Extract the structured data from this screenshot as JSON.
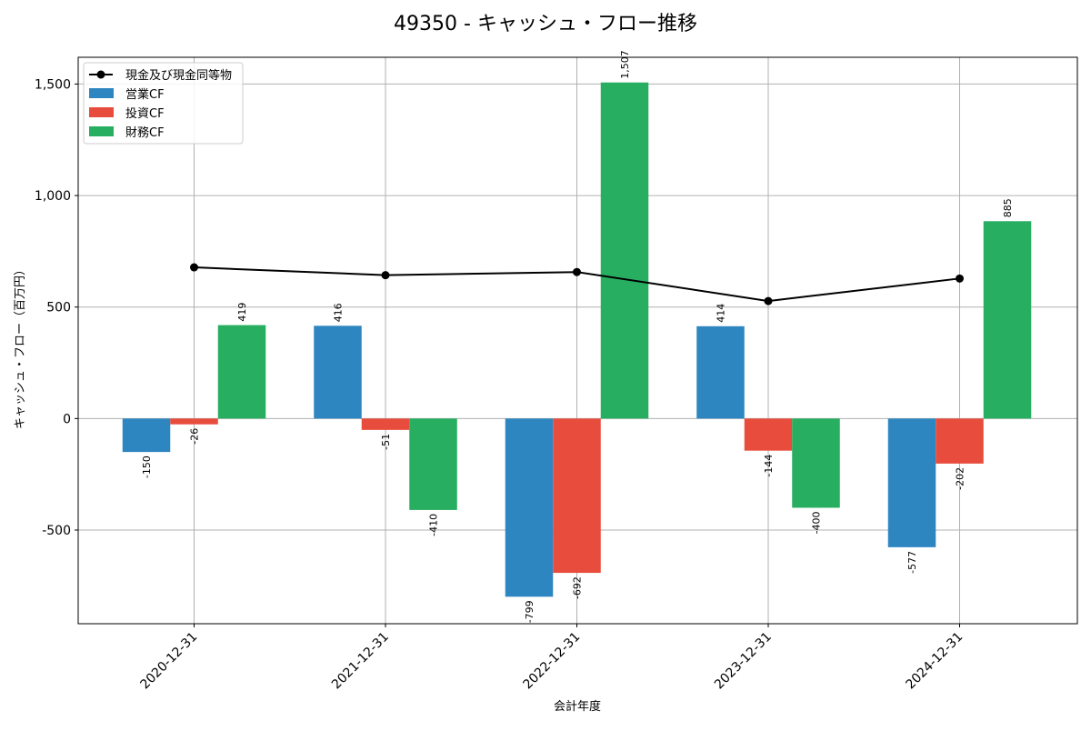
{
  "chart_data": {
    "type": "bar",
    "title": "49350 - キャッシュ・フロー推移",
    "xlabel": "会計年度",
    "ylabel": "キャッシュ・フロー（百万円）",
    "categories": [
      "2020-12-31",
      "2021-12-31",
      "2022-12-31",
      "2023-12-31",
      "2024-12-31"
    ],
    "ylim": [
      -920,
      1620
    ],
    "yticks": [
      -500,
      0,
      500,
      1000,
      1500
    ],
    "ytick_labels": [
      "-500",
      "0",
      "500",
      "1,000",
      "1,500"
    ],
    "grid": true,
    "legend_position": "top-left",
    "series": [
      {
        "name": "営業CF",
        "kind": "bar",
        "color": "#2e86c1",
        "values": [
          -150,
          416,
          -799,
          414,
          -577
        ],
        "labels": [
          "-150",
          "416",
          "-799",
          "414",
          "-577"
        ]
      },
      {
        "name": "投資CF",
        "kind": "bar",
        "color": "#e74c3c",
        "values": [
          -26,
          -51,
          -692,
          -144,
          -202
        ],
        "labels": [
          "-26",
          "-51",
          "-692",
          "-144",
          "-202"
        ]
      },
      {
        "name": "財務CF",
        "kind": "bar",
        "color": "#27ae60",
        "values": [
          419,
          -410,
          1507,
          -400,
          885
        ],
        "labels": [
          "419",
          "-410",
          "1,507",
          "-400",
          "885"
        ]
      }
    ],
    "line_series": {
      "name": "現金及び現金同等物",
      "kind": "line",
      "color": "#000000",
      "values": [
        678,
        643,
        657,
        527,
        628
      ]
    }
  }
}
